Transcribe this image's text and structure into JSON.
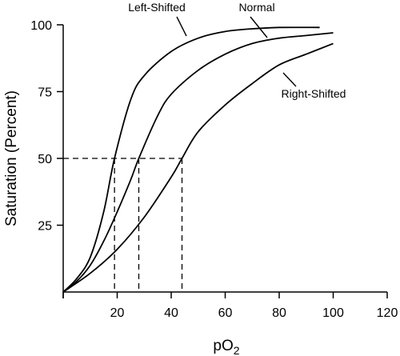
{
  "chart_data": {
    "type": "line",
    "xlabel": "pO",
    "xlabel_subscript": "2",
    "ylabel": "Saturation (Percent)",
    "xlim": [
      0,
      120
    ],
    "ylim": [
      0,
      100
    ],
    "xticks": [
      20,
      40,
      60,
      80,
      100,
      120
    ],
    "yticks": [
      25,
      50,
      75,
      100
    ],
    "grid": false,
    "series": [
      {
        "name": "Left-Shifted",
        "p50": 19,
        "points": [
          [
            0,
            0
          ],
          [
            5,
            5
          ],
          [
            10,
            13
          ],
          [
            15,
            30
          ],
          [
            19,
            50
          ],
          [
            25,
            72
          ],
          [
            30,
            81
          ],
          [
            40,
            90
          ],
          [
            50,
            95
          ],
          [
            60,
            97.5
          ],
          [
            70,
            98.5
          ],
          [
            80,
            99
          ],
          [
            95,
            99
          ]
        ]
      },
      {
        "name": "Normal",
        "p50": 28,
        "points": [
          [
            0,
            0
          ],
          [
            5,
            4
          ],
          [
            10,
            10
          ],
          [
            15,
            19
          ],
          [
            20,
            30
          ],
          [
            25,
            42
          ],
          [
            28,
            50
          ],
          [
            35,
            66
          ],
          [
            40,
            74
          ],
          [
            50,
            83
          ],
          [
            60,
            89
          ],
          [
            70,
            93
          ],
          [
            80,
            95
          ],
          [
            90,
            96
          ],
          [
            100,
            97
          ]
        ]
      },
      {
        "name": "Right-Shifted",
        "p50": 44,
        "points": [
          [
            0,
            0
          ],
          [
            10,
            7
          ],
          [
            20,
            16
          ],
          [
            30,
            28
          ],
          [
            40,
            43
          ],
          [
            44,
            50
          ],
          [
            50,
            60
          ],
          [
            60,
            70
          ],
          [
            70,
            78
          ],
          [
            80,
            85
          ],
          [
            90,
            89
          ],
          [
            100,
            93
          ]
        ]
      }
    ],
    "reference_line_y": 50,
    "reference_x": [
      19,
      28,
      44
    ]
  }
}
